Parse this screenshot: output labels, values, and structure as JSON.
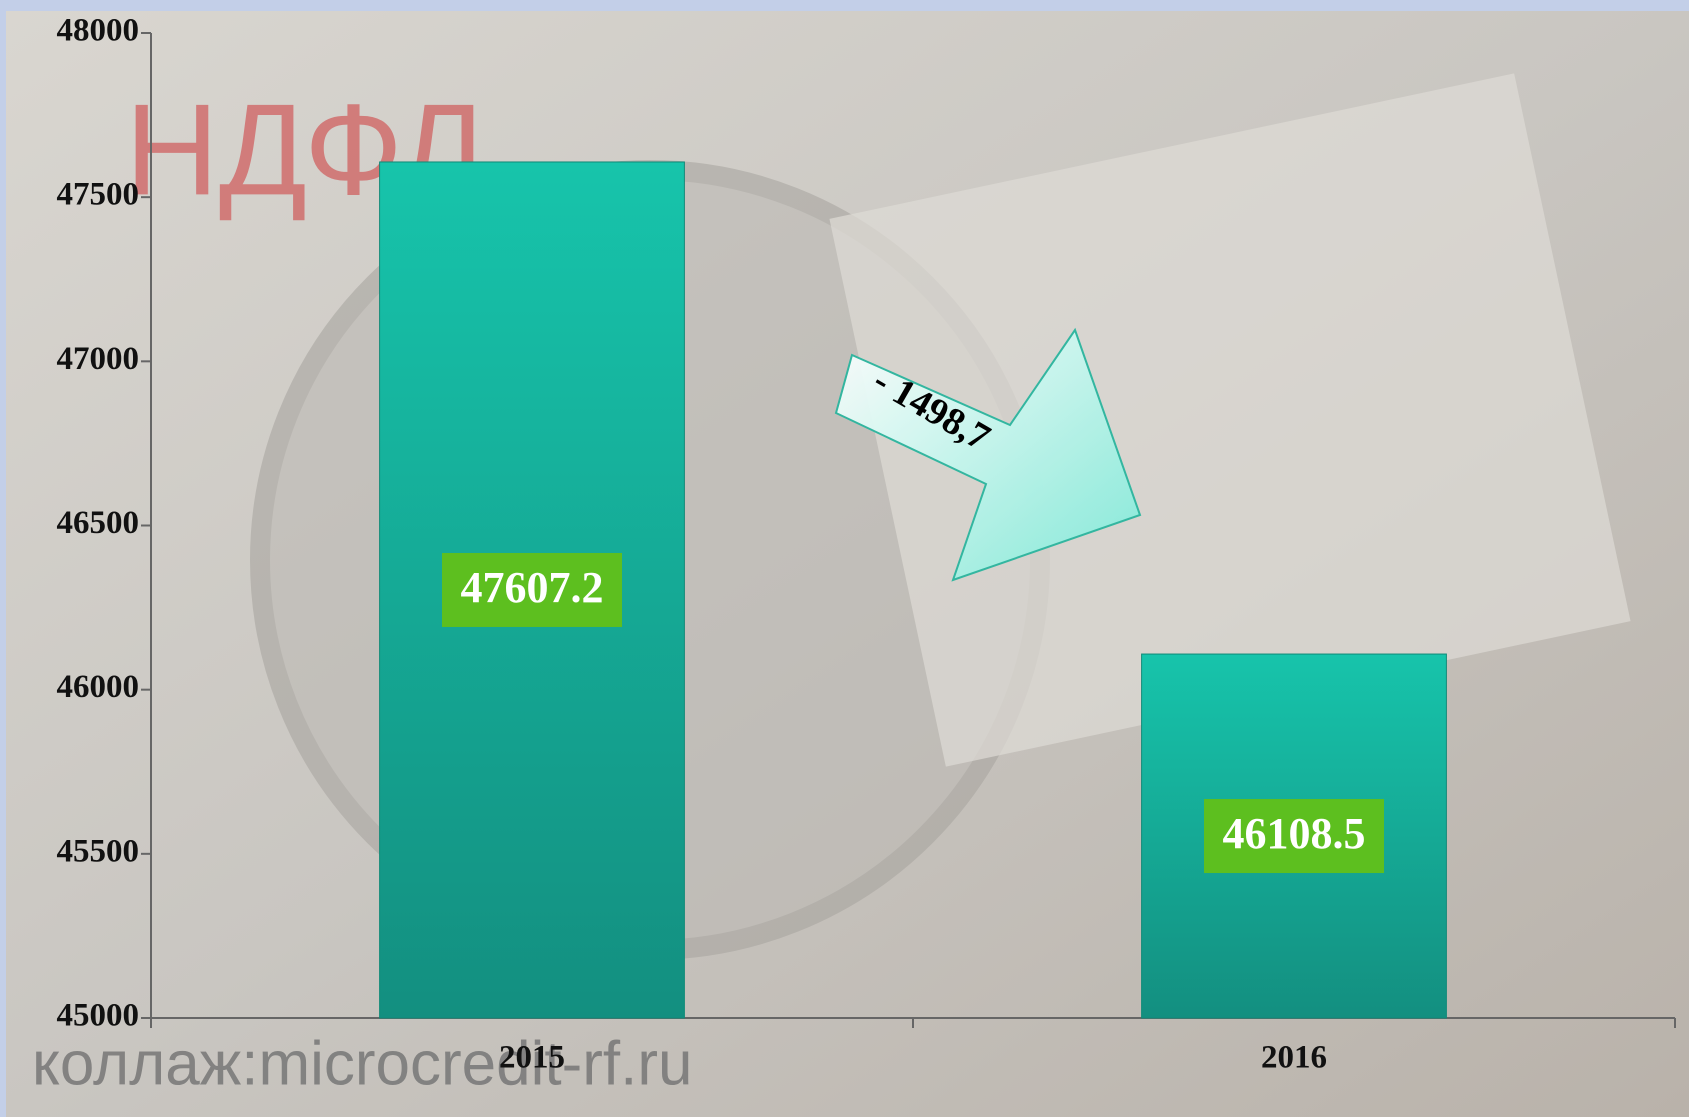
{
  "chart_data": {
    "type": "bar",
    "categories": [
      "2015",
      "2016"
    ],
    "values": [
      47607.2,
      46108.5
    ],
    "color": "#17a892",
    "ylim": [
      45000,
      48000
    ],
    "yticks": [
      45000,
      45500,
      46000,
      46500,
      47000,
      47500,
      48000
    ],
    "annotation": "- 1498,7",
    "watermarks": [
      "НДФЛ",
      "коллаж:microcredit-rf.ru"
    ]
  }
}
